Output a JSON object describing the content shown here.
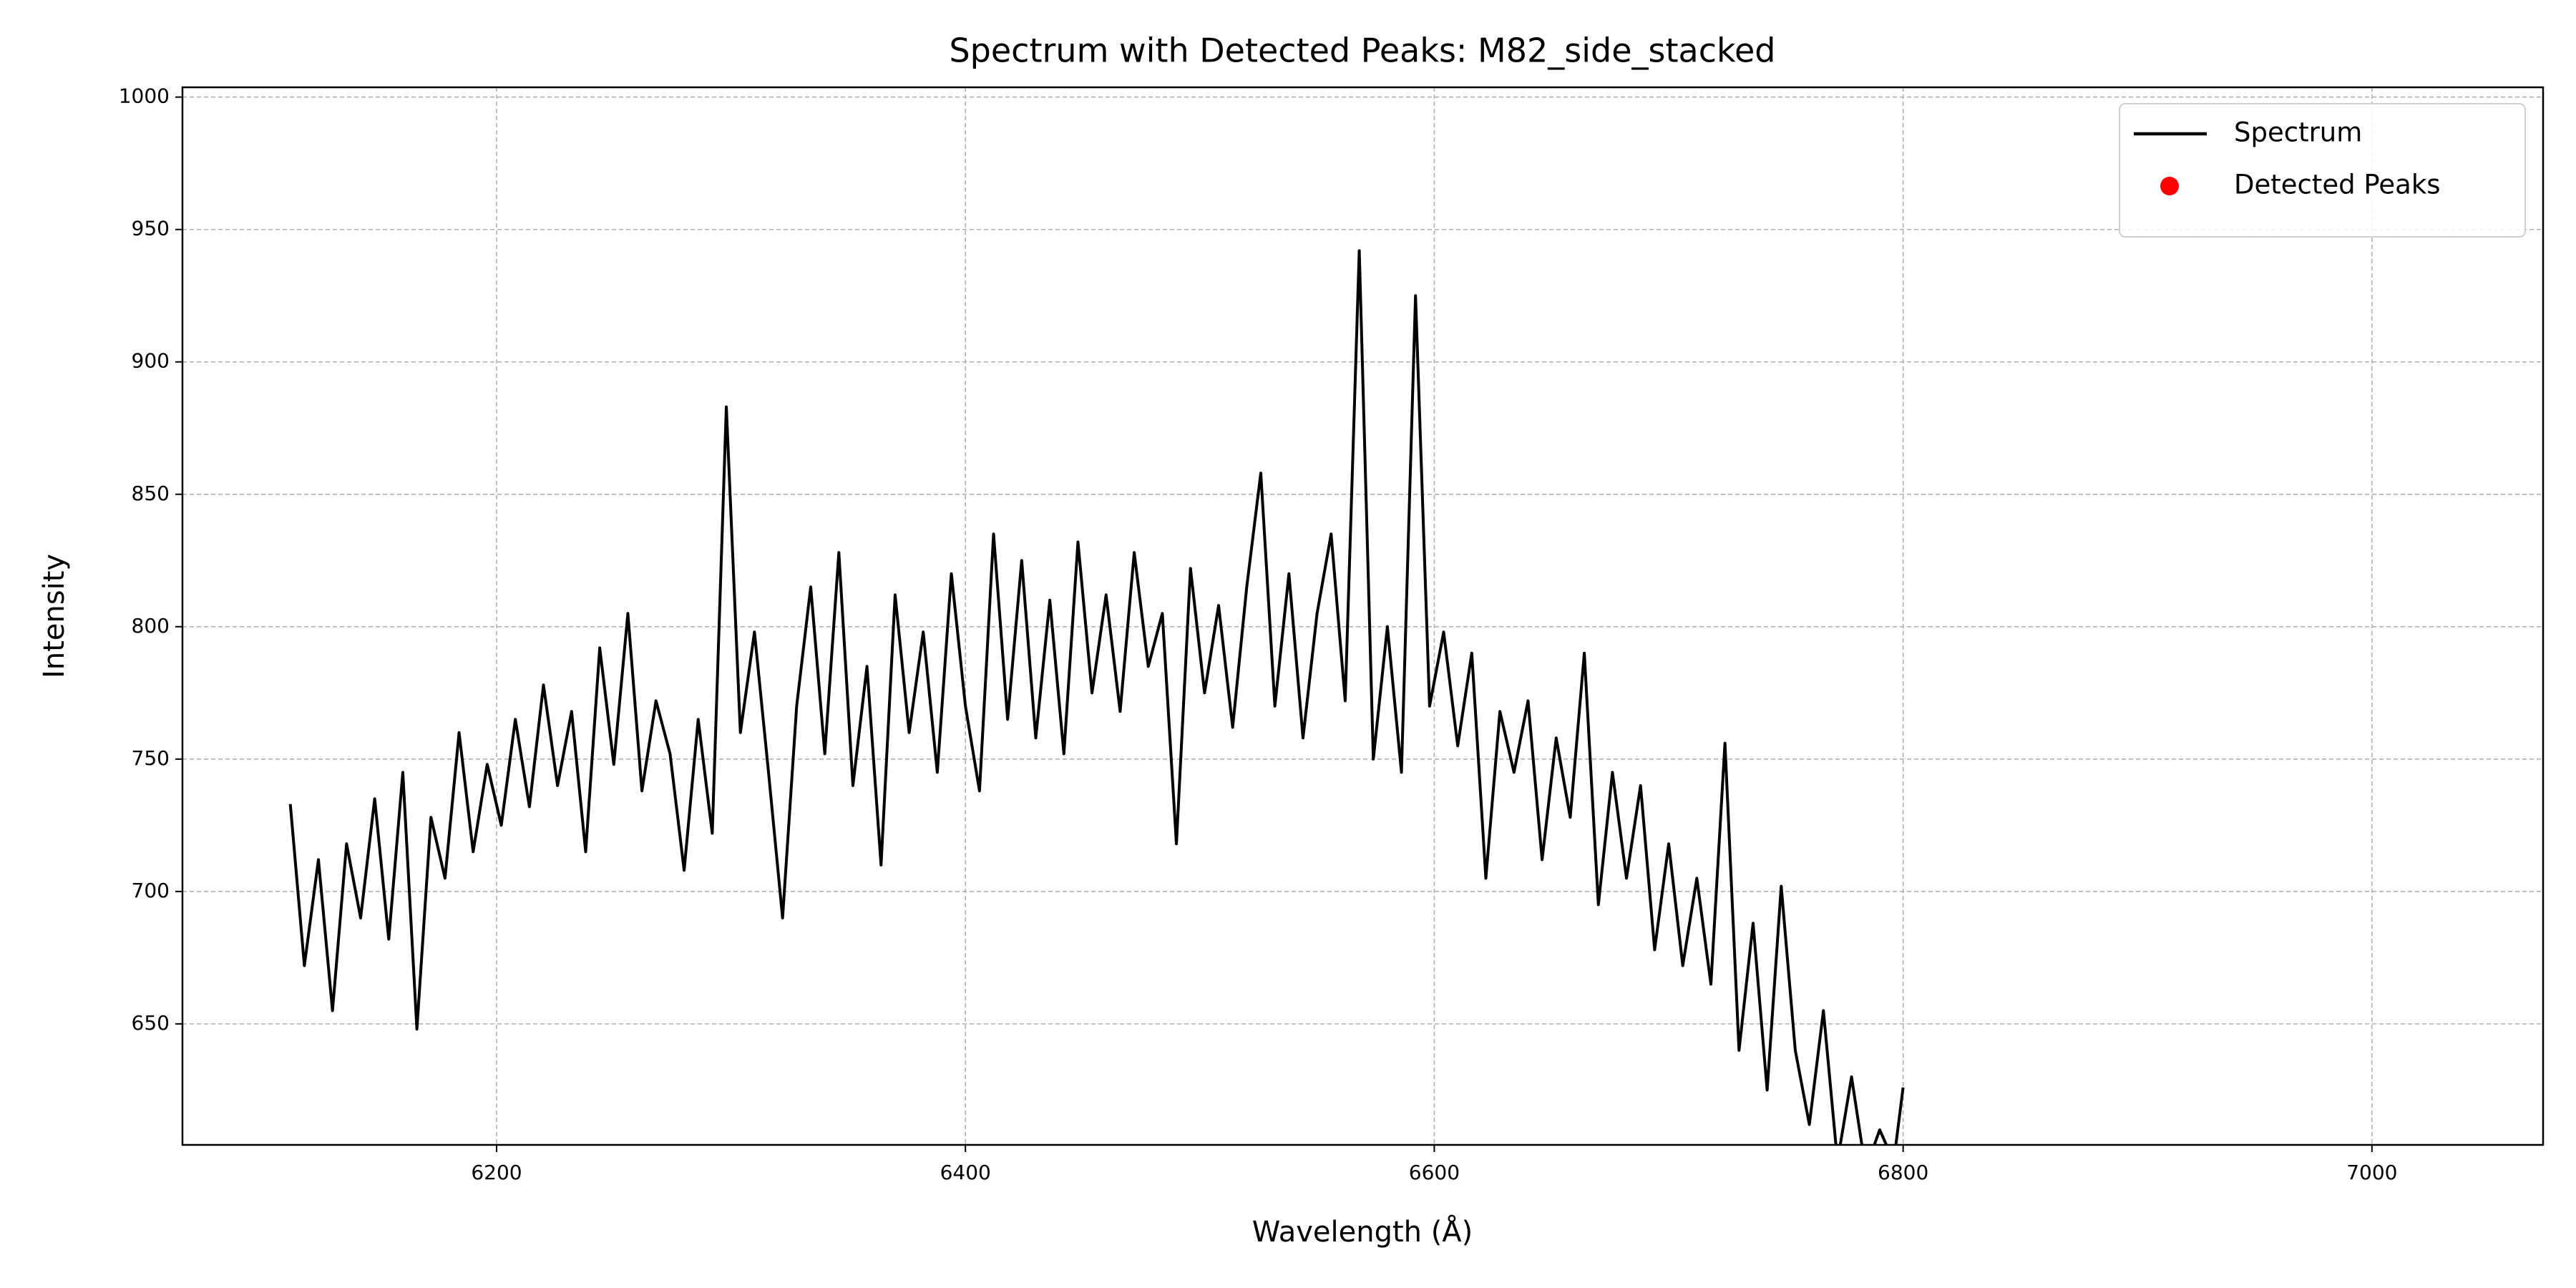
{
  "chart_data": {
    "type": "line",
    "title": "Spectrum with Detected Peaks: M82_side_stacked",
    "x_label": "Wavelength (Å)",
    "y_label": "Intensity",
    "xlim": [
      6066,
      7073
    ],
    "ylim": [
      604.3,
      1003.7
    ],
    "xticks": [
      6200,
      6400,
      6600,
      6800,
      7000
    ],
    "yticks": [
      650,
      700,
      750,
      800,
      850,
      900,
      950,
      1000
    ],
    "grid": true,
    "legend": "upper right",
    "series": [
      {
        "name": "Spectrum",
        "color": "#000000",
        "style": "line",
        "x": [
          6112,
          6118,
          6124,
          6130,
          6136,
          6142,
          6148,
          6154,
          6160,
          6166,
          6172,
          6178,
          6184,
          6190,
          6196,
          6202,
          6208,
          6214,
          6220,
          6226,
          6232,
          6238,
          6244,
          6250,
          6256,
          6262,
          6268,
          6274,
          6280,
          6286,
          6292,
          6298,
          6304,
          6310,
          6316,
          6322,
          6328,
          6334,
          6340,
          6346,
          6352,
          6358,
          6364,
          6370,
          6376,
          6382,
          6388,
          6394,
          6400,
          6406,
          6412,
          6418,
          6424,
          6430,
          6436,
          6442,
          6448,
          6454,
          6460,
          6466,
          6472,
          6478,
          6484,
          6490,
          6496,
          6502,
          6508,
          6514,
          6520,
          6526,
          6532,
          6538,
          6544,
          6550,
          6556,
          6562,
          6568,
          6574,
          6580,
          6586,
          6592,
          6598,
          6604,
          6610,
          6616,
          6622,
          6628,
          6634,
          6640,
          6646,
          6652,
          6658,
          6664,
          6670,
          6676,
          6682,
          6688,
          6694,
          6700,
          6706,
          6712,
          6718,
          6724,
          6730,
          6736,
          6742,
          6748,
          6754,
          6760,
          6766,
          6772,
          6778,
          6784,
          6790,
          6796,
          6800
        ],
        "values": [
          733,
          672,
          712,
          655,
          718,
          690,
          735,
          682,
          745,
          648,
          728,
          705,
          760,
          715,
          748,
          725,
          765,
          732,
          778,
          740,
          768,
          715,
          792,
          748,
          805,
          738,
          772,
          752,
          708,
          765,
          722,
          883,
          760,
          798,
          745,
          690,
          770,
          815,
          752,
          828,
          740,
          785,
          710,
          812,
          760,
          798,
          745,
          820,
          770,
          738,
          835,
          765,
          825,
          758,
          810,
          752,
          832,
          775,
          812,
          768,
          828,
          785,
          805,
          718,
          822,
          775,
          808,
          762,
          815,
          858,
          770,
          820,
          758,
          805,
          835,
          772,
          942,
          750,
          800,
          745,
          925,
          770,
          798,
          755,
          790,
          705,
          768,
          745,
          772,
          712,
          758,
          728,
          790,
          695,
          745,
          705,
          740,
          678,
          718,
          672,
          705,
          665,
          756,
          640,
          688,
          625,
          702,
          640,
          612,
          655,
          598,
          630,
          595,
          610,
          598,
          626
        ]
      },
      {
        "name": "Detected Peaks",
        "color": "#ff0000",
        "style": "marker",
        "x": [],
        "values": []
      }
    ]
  }
}
